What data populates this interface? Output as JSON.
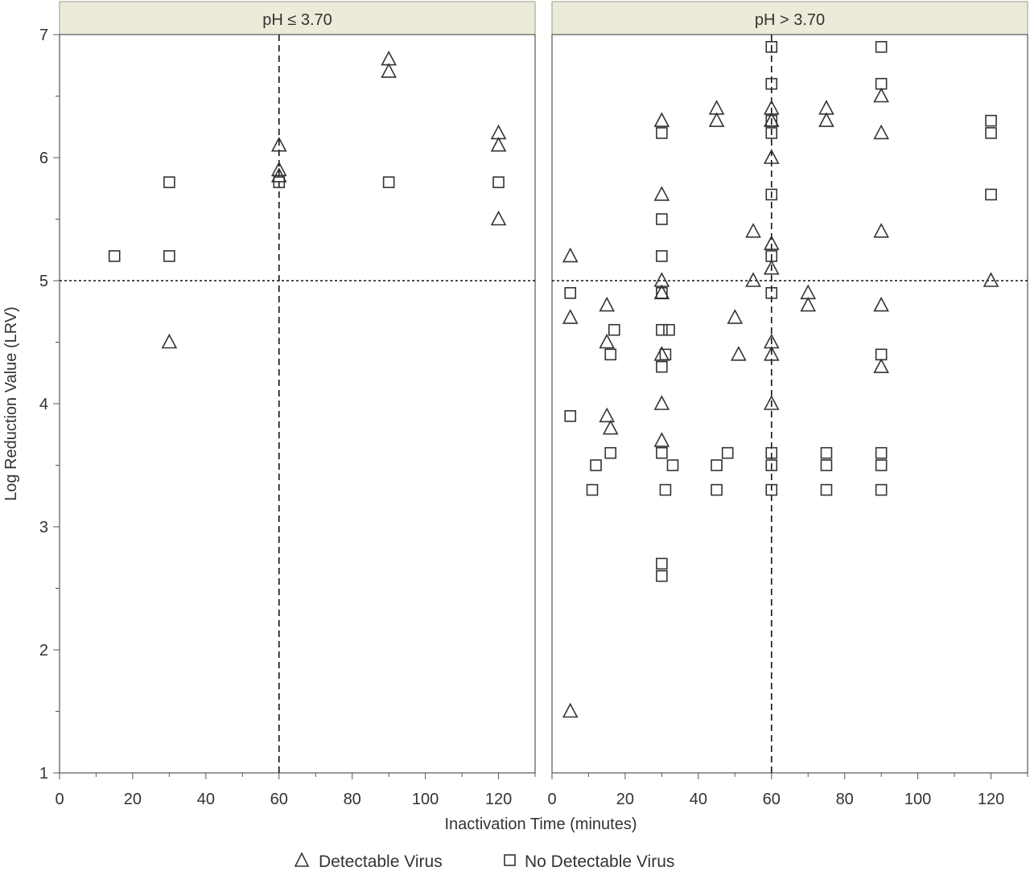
{
  "chart_data": {
    "type": "scatter",
    "xlabel": "Inactivation Time (minutes)",
    "ylabel": "Log Reduction Value (LRV)",
    "x_ticks": [
      0,
      20,
      40,
      60,
      80,
      100,
      120
    ],
    "y_ticks": [
      1,
      2,
      3,
      4,
      5,
      6,
      7
    ],
    "xlim": [
      0,
      130
    ],
    "ylim": [
      1,
      7
    ],
    "grid": false,
    "legend_placement": "bottom",
    "reference_lines": {
      "x": 60,
      "y": 5
    },
    "legend": [
      {
        "name": "Detectable Virus",
        "marker": "triangle"
      },
      {
        "name": "No Detectable Virus",
        "marker": "square"
      }
    ],
    "panels": [
      {
        "title": "pH ≤ 3.70",
        "series": [
          {
            "name": "Detectable Virus",
            "points": [
              [
                30,
                4.5
              ],
              [
                60,
                6.1
              ],
              [
                60,
                5.9
              ],
              [
                60,
                5.85
              ],
              [
                90,
                6.8
              ],
              [
                90,
                6.7
              ],
              [
                120,
                6.2
              ],
              [
                120,
                6.1
              ],
              [
                120,
                5.5
              ]
            ]
          },
          {
            "name": "No Detectable Virus",
            "points": [
              [
                15,
                5.2
              ],
              [
                30,
                5.8
              ],
              [
                30,
                5.2
              ],
              [
                60,
                5.8
              ],
              [
                90,
                5.8
              ],
              [
                120,
                5.8
              ]
            ]
          }
        ]
      },
      {
        "title": "pH > 3.70",
        "series": [
          {
            "name": "Detectable Virus",
            "points": [
              [
                5,
                5.2
              ],
              [
                5,
                4.7
              ],
              [
                5,
                1.5
              ],
              [
                15,
                4.8
              ],
              [
                15,
                4.5
              ],
              [
                15,
                3.9
              ],
              [
                16,
                3.8
              ],
              [
                30,
                6.3
              ],
              [
                30,
                5.7
              ],
              [
                30,
                5.0
              ],
              [
                30,
                4.9
              ],
              [
                30,
                4.4
              ],
              [
                30,
                4.0
              ],
              [
                30,
                3.7
              ],
              [
                45,
                6.4
              ],
              [
                45,
                6.3
              ],
              [
                50,
                4.7
              ],
              [
                51,
                4.4
              ],
              [
                55,
                5.4
              ],
              [
                55,
                5.0
              ],
              [
                60,
                6.4
              ],
              [
                60,
                6.3
              ],
              [
                60,
                6.0
              ],
              [
                60,
                5.3
              ],
              [
                60,
                5.1
              ],
              [
                60,
                4.5
              ],
              [
                60,
                4.4
              ],
              [
                60,
                4.0
              ],
              [
                70,
                4.9
              ],
              [
                70,
                4.8
              ],
              [
                75,
                6.4
              ],
              [
                75,
                6.3
              ],
              [
                90,
                6.5
              ],
              [
                90,
                6.2
              ],
              [
                90,
                5.4
              ],
              [
                90,
                4.8
              ],
              [
                90,
                4.3
              ],
              [
                120,
                5.0
              ]
            ]
          },
          {
            "name": "No Detectable Virus",
            "points": [
              [
                5,
                4.9
              ],
              [
                5,
                3.9
              ],
              [
                11,
                3.3
              ],
              [
                12,
                3.5
              ],
              [
                16,
                4.4
              ],
              [
                16,
                3.6
              ],
              [
                17,
                4.6
              ],
              [
                30,
                6.2
              ],
              [
                30,
                5.5
              ],
              [
                30,
                5.2
              ],
              [
                30,
                4.9
              ],
              [
                30,
                4.6
              ],
              [
                30,
                4.3
              ],
              [
                30,
                3.6
              ],
              [
                30,
                2.7
              ],
              [
                30,
                2.6
              ],
              [
                31,
                4.4
              ],
              [
                31,
                3.3
              ],
              [
                32,
                4.6
              ],
              [
                33,
                3.5
              ],
              [
                45,
                3.5
              ],
              [
                45,
                3.3
              ],
              [
                48,
                3.6
              ],
              [
                60,
                6.9
              ],
              [
                60,
                6.6
              ],
              [
                60,
                6.3
              ],
              [
                60,
                6.2
              ],
              [
                60,
                5.7
              ],
              [
                60,
                5.2
              ],
              [
                60,
                4.9
              ],
              [
                60,
                3.6
              ],
              [
                60,
                3.5
              ],
              [
                60,
                3.3
              ],
              [
                75,
                3.6
              ],
              [
                75,
                3.5
              ],
              [
                75,
                3.3
              ],
              [
                90,
                6.9
              ],
              [
                90,
                6.6
              ],
              [
                90,
                4.4
              ],
              [
                90,
                3.6
              ],
              [
                90,
                3.5
              ],
              [
                90,
                3.3
              ],
              [
                120,
                6.3
              ],
              [
                120,
                6.2
              ],
              [
                120,
                5.7
              ]
            ]
          }
        ]
      }
    ]
  }
}
